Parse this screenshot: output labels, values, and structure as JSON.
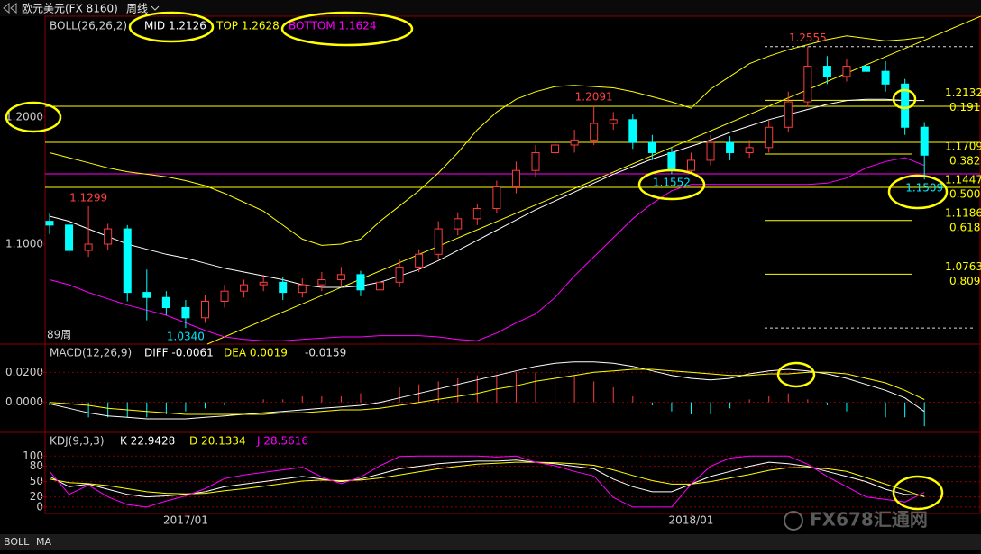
{
  "header": {
    "symbol": "欧元美元(FX 8160)",
    "period": "周线"
  },
  "tabs": [
    "BOLL",
    "MA"
  ],
  "watermark": "FX678汇通网",
  "chart_data": [
    {
      "type": "candlestick",
      "title": "BOLL(26,26,2)",
      "period_label": "89周",
      "categories": [
        null,
        null,
        null,
        null,
        null,
        null,
        null,
        "2017/01",
        null,
        null,
        null,
        null,
        null,
        null,
        null,
        null,
        null,
        null,
        null,
        null,
        null,
        null,
        null,
        null,
        null,
        null,
        null,
        null,
        null,
        null,
        null,
        null,
        null,
        "2018/01",
        null,
        null,
        null,
        null,
        null,
        null,
        null,
        null,
        null,
        null,
        null,
        null
      ],
      "open": [
        1.118,
        1.115,
        1.095,
        1.1,
        1.112,
        1.062,
        1.058,
        1.05,
        1.042,
        1.055,
        1.063,
        1.068,
        1.07,
        1.062,
        1.068,
        1.072,
        1.076,
        1.064,
        1.07,
        1.082,
        1.092,
        1.112,
        1.12,
        1.128,
        1.145,
        1.158,
        1.172,
        1.178,
        1.182,
        1.195,
        1.198,
        1.18,
        1.172,
        1.158,
        1.166,
        1.18,
        1.172,
        1.176,
        1.192,
        1.212,
        1.24,
        1.232,
        1.24,
        1.236,
        1.226,
        1.192
      ],
      "high": [
        1.124,
        1.12,
        1.1299,
        1.116,
        1.115,
        1.08,
        1.063,
        1.056,
        1.06,
        1.068,
        1.072,
        1.076,
        1.074,
        1.073,
        1.078,
        1.082,
        1.079,
        1.075,
        1.088,
        1.096,
        1.118,
        1.125,
        1.132,
        1.15,
        1.165,
        1.178,
        1.185,
        1.19,
        1.2091,
        1.204,
        1.202,
        1.186,
        1.176,
        1.172,
        1.186,
        1.185,
        1.182,
        1.198,
        1.22,
        1.2555,
        1.248,
        1.246,
        1.245,
        1.244,
        1.23,
        1.196
      ],
      "low": [
        1.108,
        1.09,
        1.09,
        1.095,
        1.055,
        1.04,
        1.044,
        1.034,
        1.038,
        1.05,
        1.058,
        1.063,
        1.056,
        1.058,
        1.063,
        1.067,
        1.059,
        1.06,
        1.066,
        1.078,
        1.088,
        1.107,
        1.115,
        1.124,
        1.14,
        1.153,
        1.167,
        1.172,
        1.178,
        1.19,
        1.175,
        1.166,
        1.1552,
        1.156,
        1.162,
        1.166,
        1.168,
        1.172,
        1.188,
        1.208,
        1.226,
        1.228,
        1.23,
        1.22,
        1.186,
        1.1509
      ],
      "close": [
        1.115,
        1.095,
        1.1,
        1.112,
        1.062,
        1.058,
        1.05,
        1.042,
        1.055,
        1.063,
        1.068,
        1.07,
        1.062,
        1.068,
        1.072,
        1.076,
        1.064,
        1.07,
        1.082,
        1.092,
        1.112,
        1.12,
        1.128,
        1.145,
        1.158,
        1.172,
        1.178,
        1.182,
        1.195,
        1.198,
        1.18,
        1.172,
        1.158,
        1.166,
        1.18,
        1.172,
        1.176,
        1.192,
        1.212,
        1.24,
        1.232,
        1.24,
        1.236,
        1.226,
        1.192,
        1.17
      ],
      "high_labels": [
        null,
        null,
        "1.1299",
        null,
        null,
        null,
        null,
        null,
        null,
        null,
        null,
        null,
        null,
        null,
        null,
        null,
        null,
        null,
        null,
        null,
        null,
        null,
        null,
        null,
        null,
        null,
        null,
        null,
        "1.2091",
        null,
        null,
        null,
        null,
        null,
        null,
        null,
        null,
        null,
        null,
        "1.2555",
        null,
        null,
        null,
        null,
        null,
        null
      ],
      "low_labels": [
        null,
        null,
        null,
        null,
        null,
        null,
        null,
        "1.0340",
        null,
        null,
        null,
        null,
        null,
        null,
        null,
        null,
        null,
        null,
        null,
        null,
        null,
        null,
        null,
        null,
        null,
        null,
        null,
        null,
        null,
        null,
        null,
        null,
        "1.1552",
        null,
        null,
        null,
        null,
        null,
        null,
        null,
        null,
        null,
        null,
        null,
        null,
        "1.1509"
      ],
      "high_label_color": "#ff4040",
      "low_label_color": "#00e5ff",
      "up_color": "#ff3c3c",
      "down_color": "#00ffff",
      "series": [
        {
          "name": "MID 1.2126",
          "color": "#ffffff",
          "values": [
            1.122,
            1.118,
            1.112,
            1.106,
            1.1,
            1.096,
            1.092,
            1.089,
            1.085,
            1.081,
            1.078,
            1.075,
            1.072,
            1.068,
            1.066,
            1.066,
            1.067,
            1.07,
            1.075,
            1.08,
            1.087,
            1.095,
            1.103,
            1.111,
            1.119,
            1.127,
            1.134,
            1.141,
            1.148,
            1.155,
            1.161,
            1.167,
            1.172,
            1.177,
            1.182,
            1.188,
            1.193,
            1.198,
            1.202,
            1.206,
            1.21,
            1.213,
            1.214,
            1.214,
            1.213,
            1.213
          ]
        },
        {
          "name": "TOP 1.2628",
          "color": "#ffff00",
          "values": [
            1.172,
            1.168,
            1.164,
            1.16,
            1.157,
            1.155,
            1.153,
            1.15,
            1.146,
            1.14,
            1.133,
            1.126,
            1.115,
            1.104,
            1.099,
            1.1,
            1.104,
            1.118,
            1.13,
            1.142,
            1.156,
            1.172,
            1.19,
            1.204,
            1.214,
            1.22,
            1.224,
            1.225,
            1.224,
            1.223,
            1.22,
            1.216,
            1.212,
            1.207,
            1.222,
            1.232,
            1.242,
            1.248,
            1.253,
            1.257,
            1.261,
            1.264,
            1.262,
            1.26,
            1.261,
            1.263
          ]
        },
        {
          "name": "BOTTOM 1.1624",
          "color": "#ff00ff",
          "values": [
            1.072,
            1.068,
            1.062,
            1.057,
            1.052,
            1.048,
            1.044,
            1.038,
            1.032,
            1.027,
            1.025,
            1.024,
            1.024,
            1.025,
            1.026,
            1.027,
            1.027,
            1.028,
            1.028,
            1.028,
            1.027,
            1.025,
            1.024,
            1.03,
            1.038,
            1.045,
            1.058,
            1.075,
            1.09,
            1.105,
            1.12,
            1.132,
            1.142,
            1.147,
            1.147,
            1.147,
            1.147,
            1.147,
            1.147,
            1.147,
            1.148,
            1.152,
            1.16,
            1.165,
            1.168,
            1.162
          ]
        }
      ],
      "ylim": [
        1.0213,
        1.2794
      ],
      "yticks": [
        {
          "value": 1.2,
          "label": "1.2000"
        },
        {
          "value": 1.1,
          "label": "1.1000"
        }
      ],
      "hlines": [
        {
          "value": 1.2085,
          "color": "#ffff00"
        },
        {
          "value": 1.1801,
          "color": "#ffff00"
        },
        {
          "value": 1.1553,
          "color": "#ff00ff"
        },
        {
          "value": 1.1447,
          "color": "#ffff00"
        }
      ],
      "fib_levels": [
        {
          "value": 1.2132,
          "label": "1.2132",
          "ratio": "0.191"
        },
        {
          "value": 1.1709,
          "label": "1.1709",
          "ratio": "0.382"
        },
        {
          "value": 1.1447,
          "label": "1.1447",
          "ratio": "0.500"
        },
        {
          "value": 1.1186,
          "label": "1.1186",
          "ratio": "0.618"
        },
        {
          "value": 1.0763,
          "label": "1.0763",
          "ratio": "0.809"
        }
      ],
      "dashed_levels": [
        1.2555,
        1.034
      ]
    },
    {
      "type": "macd",
      "title": "MACD(12,26,9)",
      "grid": true,
      "up_color": "#ff3c3c",
      "down_color": "#00ffff",
      "series": [
        {
          "name": "DIFF -0.0061",
          "color": "#ffffff",
          "kind": "line",
          "values": [
            -0.001,
            -0.004,
            -0.007,
            -0.009,
            -0.01,
            -0.011,
            -0.011,
            -0.011,
            -0.01,
            -0.009,
            -0.008,
            -0.007,
            -0.006,
            -0.005,
            -0.004,
            -0.003,
            -0.002,
            0.0,
            0.003,
            0.006,
            0.009,
            0.012,
            0.015,
            0.018,
            0.021,
            0.024,
            0.026,
            0.027,
            0.027,
            0.026,
            0.024,
            0.021,
            0.018,
            0.016,
            0.015,
            0.016,
            0.019,
            0.021,
            0.022,
            0.021,
            0.019,
            0.016,
            0.012,
            0.008,
            0.003,
            -0.0061
          ]
        },
        {
          "name": "DEA 0.0019",
          "color": "#ffff00",
          "kind": "line",
          "values": [
            0.0,
            -0.001,
            -0.002,
            -0.004,
            -0.005,
            -0.006,
            -0.007,
            -0.008,
            -0.008,
            -0.008,
            -0.008,
            -0.008,
            -0.007,
            -0.007,
            -0.006,
            -0.005,
            -0.005,
            -0.004,
            -0.002,
            0.0,
            0.002,
            0.004,
            0.006,
            0.009,
            0.011,
            0.014,
            0.016,
            0.018,
            0.02,
            0.021,
            0.022,
            0.022,
            0.021,
            0.02,
            0.019,
            0.018,
            0.018,
            0.019,
            0.019,
            0.02,
            0.02,
            0.019,
            0.016,
            0.013,
            0.008,
            0.0019
          ]
        },
        {
          "name": "-0.0159",
          "color": "#ffffff",
          "kind": "bar",
          "values": [
            -0.002,
            -0.006,
            -0.01,
            -0.01,
            -0.01,
            -0.01,
            -0.008,
            -0.006,
            -0.004,
            -0.002,
            0.0,
            0.002,
            0.002,
            0.004,
            0.004,
            0.004,
            0.006,
            0.008,
            0.01,
            0.012,
            0.014,
            0.016,
            0.018,
            0.018,
            0.02,
            0.02,
            0.02,
            0.018,
            0.014,
            0.01,
            0.004,
            -0.002,
            -0.006,
            -0.008,
            -0.008,
            -0.004,
            0.002,
            0.004,
            0.006,
            0.002,
            -0.002,
            -0.006,
            -0.008,
            -0.01,
            -0.01,
            -0.0159
          ]
        }
      ],
      "ylim": [
        -0.02,
        0.0388
      ],
      "yticks": [
        {
          "value": 0.02,
          "label": "0.0200"
        },
        {
          "value": 0,
          "label": "0.0000"
        }
      ]
    },
    {
      "type": "line",
      "title": "KDJ(9,3,3)",
      "grid": true,
      "series": [
        {
          "name": "K 22.9428",
          "color": "#ffffff",
          "values": [
            60,
            40,
            45,
            35,
            25,
            20,
            22,
            25,
            30,
            40,
            45,
            50,
            55,
            60,
            55,
            50,
            55,
            65,
            75,
            80,
            85,
            88,
            90,
            90,
            92,
            88,
            85,
            80,
            75,
            55,
            40,
            30,
            30,
            45,
            60,
            70,
            80,
            88,
            85,
            80,
            70,
            60,
            50,
            35,
            25,
            22.9428
          ]
        },
        {
          "name": "D 20.1334",
          "color": "#ffff00",
          "values": [
            55,
            48,
            46,
            42,
            36,
            30,
            27,
            26,
            27,
            32,
            36,
            41,
            46,
            51,
            53,
            52,
            53,
            57,
            63,
            69,
            75,
            80,
            84,
            86,
            88,
            88,
            87,
            85,
            82,
            73,
            62,
            52,
            45,
            45,
            50,
            57,
            64,
            72,
            77,
            78,
            75,
            70,
            58,
            45,
            33,
            20.1334
          ]
        },
        {
          "name": "J 28.5616",
          "color": "#ff00ff",
          "values": [
            70,
            25,
            43,
            20,
            5,
            0,
            12,
            22,
            36,
            56,
            63,
            68,
            73,
            78,
            59,
            46,
            59,
            81,
            99,
            100,
            100,
            100,
            100,
            98,
            100,
            88,
            81,
            70,
            61,
            19,
            0,
            0,
            0,
            45,
            80,
            96,
            100,
            100,
            100,
            84,
            60,
            40,
            20,
            15,
            10,
            28.5616
          ]
        }
      ],
      "ylim": [
        -12.5,
        146.4
      ],
      "yticks": [
        100,
        80,
        50,
        20,
        0
      ]
    }
  ]
}
